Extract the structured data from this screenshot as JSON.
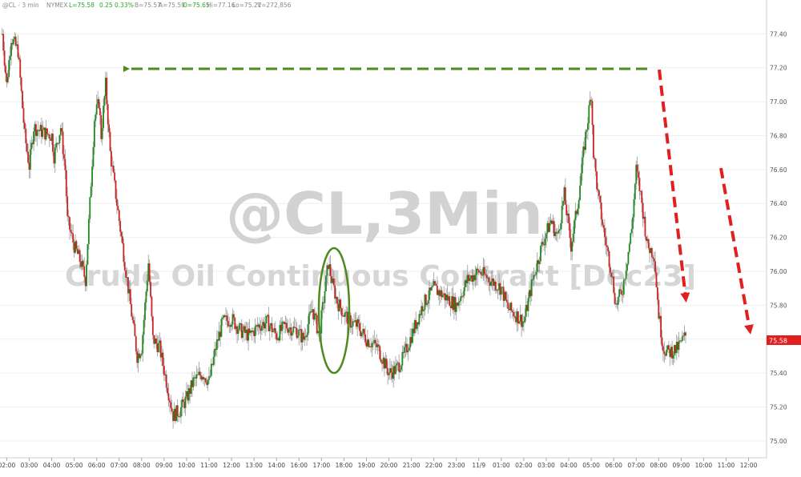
{
  "header": {
    "title": "@CL - 3 min",
    "exchange": "NYMEX",
    "last": "L=75.58",
    "change": "0.25",
    "pct": "0.33%",
    "bid": "B=75.57",
    "ask": "A=75.59",
    "open": "O=75.65",
    "high": "Hi=77.16",
    "low": "Lo=75.21",
    "volume": "V=272,856"
  },
  "watermark": {
    "line1": "@CL,3Min",
    "line2": "Crude Oil Continuous Contract [Dec23]"
  },
  "price_tag": "75.58",
  "colors": {
    "up": "#1e8a1e",
    "down": "#cc2222",
    "wick": "#999999",
    "annotation_green": "#4e8a1f",
    "annotation_red": "#e02020",
    "price_tag_bg": "#e02020"
  },
  "chart_data": {
    "type": "candlestick",
    "title": "@CL,3Min",
    "subtitle": "Crude Oil Continuous Contract [Dec23]",
    "ylim": [
      74.9,
      77.6
    ],
    "y_ticks": [
      "75.00",
      "75.20",
      "75.40",
      "75.60",
      "75.80",
      "76.00",
      "76.20",
      "76.40",
      "76.60",
      "76.80",
      "77.00",
      "77.20",
      "77.40"
    ],
    "x_ticks": [
      "02:00",
      "03:00",
      "04:00",
      "05:00",
      "06:00",
      "07:00",
      "08:00",
      "09:00",
      "10:00",
      "11:00",
      "12:00",
      "13:00",
      "14:00",
      "16:00",
      "17:00",
      "18:00",
      "19:00",
      "20:00",
      "21:00",
      "22:00",
      "23:00",
      "11/9",
      "01:00",
      "02:00",
      "03:00",
      "04:00",
      "05:00",
      "06:00",
      "07:00",
      "08:00",
      "09:00",
      "10:00",
      "11:00",
      "12:00"
    ],
    "x_range": [
      -0.3,
      33.8
    ],
    "anchors": [
      [
        -0.2,
        77.4
      ],
      [
        0.0,
        77.1
      ],
      [
        0.2,
        77.38
      ],
      [
        0.5,
        77.3
      ],
      [
        0.8,
        76.8
      ],
      [
        1.0,
        76.62
      ],
      [
        1.2,
        76.85
      ],
      [
        1.6,
        76.82
      ],
      [
        2.0,
        76.8
      ],
      [
        2.1,
        76.68
      ],
      [
        2.4,
        76.85
      ],
      [
        2.6,
        76.6
      ],
      [
        2.7,
        76.3
      ],
      [
        3.0,
        76.15
      ],
      [
        3.3,
        76.05
      ],
      [
        3.5,
        75.95
      ],
      [
        3.7,
        76.4
      ],
      [
        3.9,
        76.9
      ],
      [
        4.1,
        77.0
      ],
      [
        4.2,
        76.8
      ],
      [
        4.4,
        77.1
      ],
      [
        4.6,
        76.7
      ],
      [
        4.8,
        76.5
      ],
      [
        5.2,
        76.1
      ],
      [
        5.5,
        75.8
      ],
      [
        5.8,
        75.5
      ],
      [
        6.0,
        75.55
      ],
      [
        6.3,
        76.05
      ],
      [
        6.5,
        75.6
      ],
      [
        6.8,
        75.55
      ],
      [
        7.1,
        75.35
      ],
      [
        7.4,
        75.15
      ],
      [
        7.7,
        75.18
      ],
      [
        8.0,
        75.25
      ],
      [
        8.3,
        75.35
      ],
      [
        8.7,
        75.4
      ],
      [
        9.0,
        75.35
      ],
      [
        9.3,
        75.55
      ],
      [
        9.6,
        75.7
      ],
      [
        10.0,
        75.72
      ],
      [
        10.4,
        75.65
      ],
      [
        10.8,
        75.62
      ],
      [
        11.2,
        75.68
      ],
      [
        11.6,
        75.7
      ],
      [
        12.0,
        75.62
      ],
      [
        12.4,
        75.68
      ],
      [
        12.9,
        75.65
      ],
      [
        13.2,
        75.6
      ],
      [
        13.6,
        75.78
      ],
      [
        13.9,
        75.62
      ],
      [
        14.3,
        76.05
      ],
      [
        14.5,
        75.92
      ],
      [
        14.7,
        75.82
      ],
      [
        15.0,
        75.75
      ],
      [
        15.3,
        75.7
      ],
      [
        15.6,
        75.68
      ],
      [
        16.0,
        75.6
      ],
      [
        16.5,
        75.55
      ],
      [
        17.0,
        75.4
      ],
      [
        17.3,
        75.42
      ],
      [
        17.6,
        75.48
      ],
      [
        18.0,
        75.62
      ],
      [
        18.5,
        75.8
      ],
      [
        19.0,
        75.9
      ],
      [
        19.5,
        75.85
      ],
      [
        20.0,
        75.8
      ],
      [
        20.5,
        75.95
      ],
      [
        21.0,
        76.0
      ],
      [
        21.5,
        75.95
      ],
      [
        22.0,
        75.9
      ],
      [
        22.3,
        75.78
      ],
      [
        22.6,
        75.75
      ],
      [
        23.0,
        75.7
      ],
      [
        23.4,
        75.95
      ],
      [
        23.8,
        76.15
      ],
      [
        24.2,
        76.3
      ],
      [
        24.5,
        76.2
      ],
      [
        24.8,
        76.45
      ],
      [
        25.1,
        76.15
      ],
      [
        25.4,
        76.4
      ],
      [
        25.7,
        76.75
      ],
      [
        25.9,
        76.95
      ],
      [
        26.0,
        77.05
      ],
      [
        26.1,
        76.7
      ],
      [
        26.3,
        76.45
      ],
      [
        26.6,
        76.2
      ],
      [
        26.9,
        76.0
      ],
      [
        27.1,
        75.8
      ],
      [
        27.4,
        75.9
      ],
      [
        27.8,
        76.25
      ],
      [
        28.0,
        76.6
      ],
      [
        28.2,
        76.45
      ],
      [
        28.5,
        76.15
      ],
      [
        28.8,
        76.1
      ],
      [
        29.0,
        75.75
      ],
      [
        29.2,
        75.55
      ],
      [
        29.4,
        75.52
      ],
      [
        29.8,
        75.54
      ],
      [
        30.2,
        75.62
      ]
    ]
  }
}
